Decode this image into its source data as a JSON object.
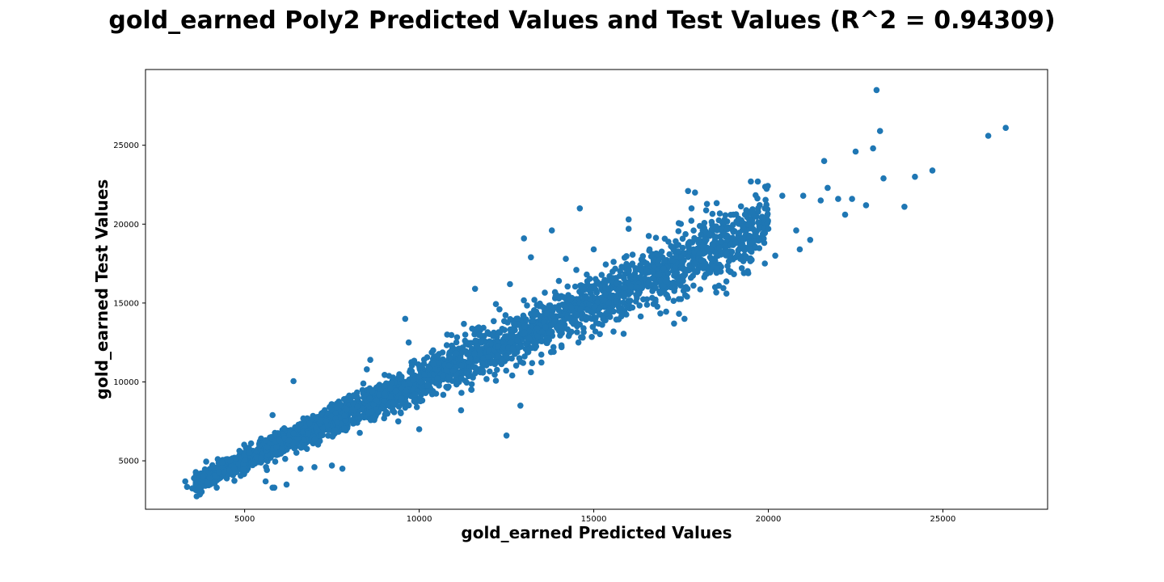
{
  "chart_data": {
    "type": "scatter",
    "title": "gold_earned Poly2 Predicted Values and Test Values (R^2 = 0.94309)",
    "xlabel": "gold_earned Predicted Values",
    "ylabel": "gold_earned Test Values",
    "xlim": [
      2160,
      28000
    ],
    "ylim": [
      1930,
      29800
    ],
    "xticks": [
      5000,
      10000,
      15000,
      20000,
      25000
    ],
    "yticks": [
      5000,
      10000,
      15000,
      20000,
      25000
    ],
    "grid": false,
    "legend": "none",
    "series": [
      {
        "color": "#1f77b4",
        "trend": {
          "slope": 1.0,
          "intercept": 0
        },
        "points": [
          [
            3300,
            3700
          ],
          [
            3350,
            3350
          ],
          [
            3500,
            3250
          ],
          [
            3550,
            3900
          ],
          [
            3600,
            3500
          ],
          [
            3700,
            3300
          ],
          [
            3800,
            4000
          ],
          [
            3900,
            4950
          ],
          [
            3950,
            3600
          ],
          [
            4200,
            3300
          ],
          [
            4350,
            4900
          ],
          [
            4500,
            5100
          ],
          [
            4700,
            4500
          ],
          [
            5000,
            5050
          ],
          [
            5600,
            6300
          ],
          [
            5600,
            3700
          ],
          [
            5800,
            3300
          ],
          [
            5850,
            3300
          ],
          [
            6000,
            6300
          ],
          [
            6200,
            3500
          ],
          [
            6400,
            10050
          ],
          [
            5800,
            7900
          ],
          [
            6600,
            4500
          ],
          [
            7000,
            4600
          ],
          [
            7200,
            8000
          ],
          [
            7500,
            4700
          ],
          [
            7800,
            4500
          ],
          [
            8400,
            9900
          ],
          [
            8500,
            10800
          ],
          [
            8600,
            11400
          ],
          [
            9000,
            8800
          ],
          [
            9400,
            7500
          ],
          [
            9700,
            12500
          ],
          [
            9600,
            14000
          ],
          [
            10000,
            7000
          ],
          [
            10400,
            12000
          ],
          [
            10800,
            13000
          ],
          [
            11200,
            8200
          ],
          [
            11500,
            9500
          ],
          [
            11600,
            15900
          ],
          [
            12000,
            12000
          ],
          [
            12300,
            14600
          ],
          [
            12600,
            16200
          ],
          [
            12500,
            6600
          ],
          [
            12900,
            8500
          ],
          [
            13000,
            19100
          ],
          [
            13200,
            17900
          ],
          [
            13300,
            15200
          ],
          [
            13500,
            14800
          ],
          [
            13800,
            19600
          ],
          [
            14000,
            16400
          ],
          [
            14200,
            17800
          ],
          [
            14500,
            17100
          ],
          [
            14600,
            21000
          ],
          [
            14800,
            16800
          ],
          [
            15000,
            18400
          ],
          [
            15300,
            15200
          ],
          [
            15800,
            14300
          ],
          [
            16000,
            17000
          ],
          [
            16000,
            19700
          ],
          [
            16000,
            20300
          ],
          [
            16500,
            17500
          ],
          [
            17000,
            17200
          ],
          [
            17100,
            15500
          ],
          [
            17300,
            13700
          ],
          [
            17600,
            14000
          ],
          [
            17700,
            22100
          ],
          [
            17800,
            21000
          ],
          [
            17900,
            17000
          ],
          [
            17900,
            22000
          ],
          [
            18200,
            16800
          ],
          [
            18600,
            18500
          ],
          [
            18800,
            15600
          ],
          [
            19000,
            20600
          ],
          [
            19200,
            17800
          ],
          [
            19300,
            16900
          ],
          [
            19500,
            22700
          ],
          [
            19700,
            22700
          ],
          [
            19900,
            21000
          ],
          [
            20000,
            19700
          ],
          [
            20200,
            18000
          ],
          [
            20400,
            21800
          ],
          [
            20800,
            19600
          ],
          [
            20900,
            18400
          ],
          [
            21000,
            21800
          ],
          [
            21200,
            19000
          ],
          [
            21500,
            21500
          ],
          [
            21600,
            24000
          ],
          [
            21700,
            22300
          ],
          [
            22000,
            21600
          ],
          [
            22200,
            20600
          ],
          [
            22400,
            21600
          ],
          [
            22500,
            24600
          ],
          [
            22800,
            21200
          ],
          [
            23000,
            24800
          ],
          [
            23100,
            28500
          ],
          [
            23200,
            25900
          ],
          [
            23300,
            22900
          ],
          [
            23900,
            21100
          ],
          [
            24200,
            23000
          ],
          [
            24700,
            23400
          ],
          [
            26300,
            25600
          ],
          [
            26800,
            26100
          ]
        ]
      }
    ]
  }
}
